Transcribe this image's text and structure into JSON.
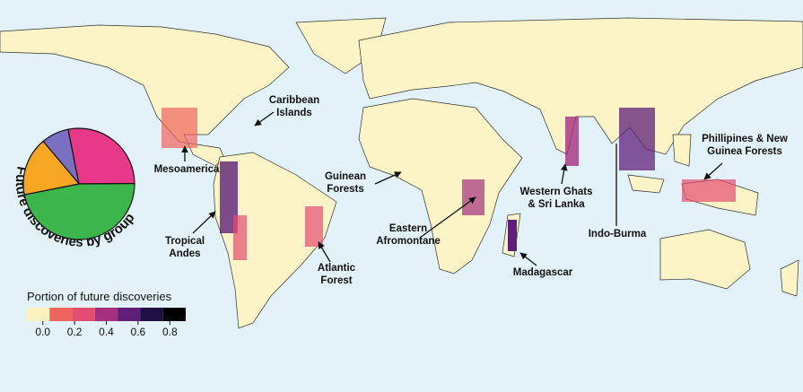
{
  "map": {
    "regions": [
      {
        "lines": [
          "Caribbean",
          "Islands"
        ]
      },
      {
        "lines": [
          "Mesoamerica"
        ]
      },
      {
        "lines": [
          "Tropical",
          "Andes"
        ]
      },
      {
        "lines": [
          "Atlantic",
          "Forest"
        ]
      },
      {
        "lines": [
          "Guinean",
          "Forests"
        ]
      },
      {
        "lines": [
          "Eastern",
          "Afromontane"
        ]
      },
      {
        "lines": [
          "Western Ghats",
          "& Sri Lanka"
        ]
      },
      {
        "lines": [
          "Madagascar"
        ]
      },
      {
        "lines": [
          "Indo-Burma"
        ]
      },
      {
        "lines": [
          "Phillipines & New",
          "Guinea Forests"
        ]
      }
    ]
  },
  "pie": {
    "type": "pie",
    "title": "Future discoveries by group",
    "values": [
      8,
      28,
      47,
      17
    ],
    "colors": [
      "#7b6fc0",
      "#e8388a",
      "#3cb54a",
      "#f6a623"
    ]
  },
  "legend": {
    "title": "Portion of future discoveries",
    "colors": [
      "#fcf1bf",
      "#f0645e",
      "#e34d6f",
      "#a4317f",
      "#5e1f78",
      "#1f0f45",
      "#000000"
    ],
    "lim": [
      -0.1,
      0.9
    ],
    "ticks": [
      {
        "value": 0,
        "label": "0.0"
      },
      0.2,
      0.4,
      0.6,
      0.8
    ]
  }
}
